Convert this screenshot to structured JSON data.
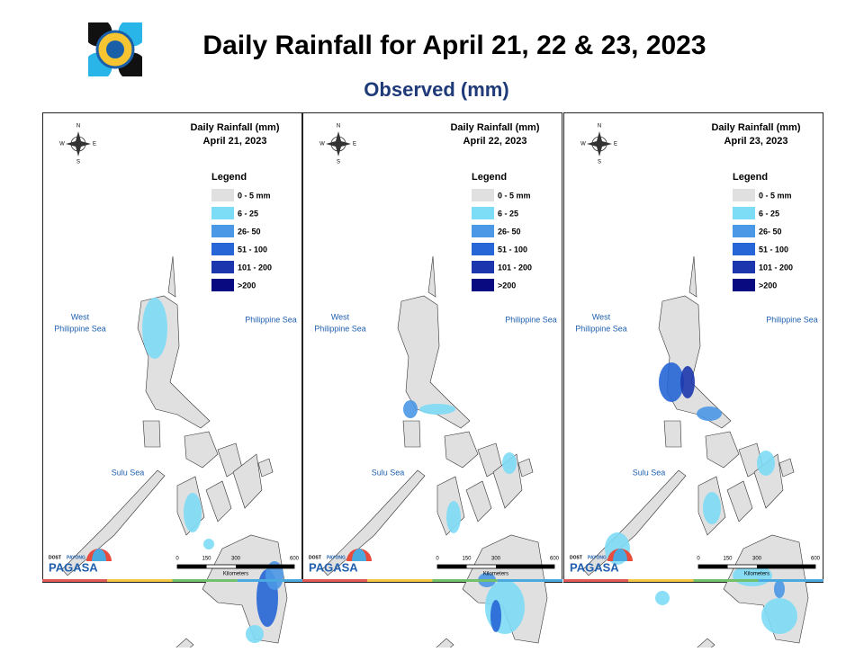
{
  "header": {
    "title": "Daily Rainfall for April 21, 22 & 23, 2023",
    "subtitle": "Observed (mm)"
  },
  "panels": [
    {
      "title": "Daily Rainfall (mm)",
      "date": "April 21, 2023"
    },
    {
      "title": "Daily Rainfall (mm)",
      "date": "April 22, 2023"
    },
    {
      "title": "Daily Rainfall (mm)",
      "date": "April 23, 2023"
    }
  ],
  "legend": {
    "title": "Legend",
    "items": [
      {
        "label": "0 - 5 mm",
        "color": "#e0e0e0"
      },
      {
        "label": "6 - 25",
        "color": "#7ddcf6"
      },
      {
        "label": "26- 50",
        "color": "#4b98e6"
      },
      {
        "label": "51 - 100",
        "color": "#2766d6"
      },
      {
        "label": "101 - 200",
        "color": "#1c37ad"
      },
      {
        "label": ">200",
        "color": "#0a0a80"
      }
    ]
  },
  "seas": {
    "west": [
      "West",
      "Philippine Sea"
    ],
    "east": "Philippine Sea",
    "south": "Sulu Sea"
  },
  "compass": {
    "n": "N",
    "e": "E",
    "s": "S",
    "w": "W"
  },
  "scale": {
    "ticks": [
      0,
      150,
      300,
      600
    ],
    "unit": "Kilometers"
  },
  "branding": {
    "agency": "DOST",
    "name": "PAGASA",
    "tag": "PAYONG"
  }
}
